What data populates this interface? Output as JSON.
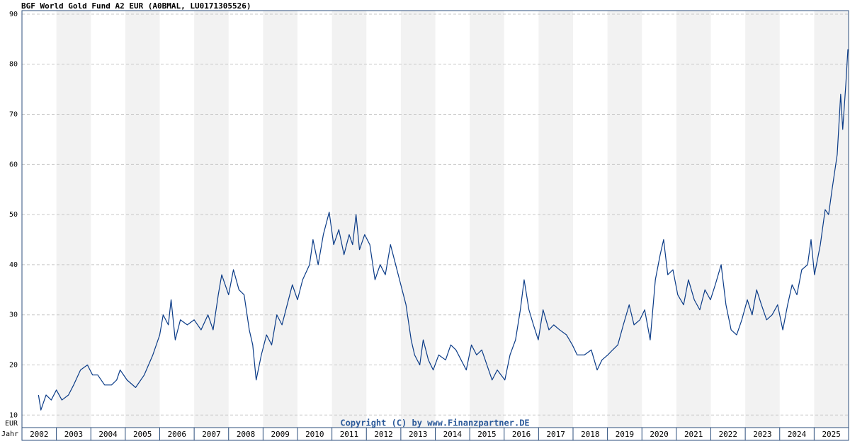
{
  "chart_data": {
    "type": "line",
    "title": "BGF World Gold Fund A2 EUR (A0BMAL, LU0171305526)",
    "annotation": "Copyright (C) by www.Finanzpartner.DE",
    "y_label": "EUR",
    "x_label": "Jahr",
    "xlim": [
      2002,
      2026
    ],
    "x_bands": [
      2002,
      2003,
      2004,
      2005,
      2006,
      2007,
      2008,
      2009,
      2010,
      2011,
      2012,
      2013,
      2014,
      2015,
      2016,
      2017,
      2018,
      2019,
      2020,
      2021,
      2022,
      2023,
      2024,
      2025
    ],
    "ylim": [
      7.5,
      90.7
    ],
    "yticks": [
      10,
      20,
      30,
      40,
      50,
      60,
      70,
      80,
      90
    ],
    "grid": true,
    "shade_alternate_years": true,
    "series": [
      {
        "color": "#0a3b87",
        "x": [
          2002.48,
          2002.55,
          2002.7,
          2002.85,
          2003.0,
          2003.16,
          2003.35,
          2003.5,
          2003.7,
          2003.9,
          2004.05,
          2004.2,
          2004.4,
          2004.6,
          2004.75,
          2004.85,
          2005.05,
          2005.3,
          2005.55,
          2005.8,
          2006.0,
          2006.1,
          2006.25,
          2006.33,
          2006.45,
          2006.6,
          2006.8,
          2007.0,
          2007.2,
          2007.4,
          2007.55,
          2007.7,
          2007.8,
          2008.0,
          2008.14,
          2008.3,
          2008.45,
          2008.6,
          2008.7,
          2008.8,
          2008.95,
          2009.1,
          2009.25,
          2009.4,
          2009.55,
          2009.7,
          2009.85,
          2010.0,
          2010.15,
          2010.35,
          2010.45,
          2010.6,
          2010.75,
          2010.92,
          2011.05,
          2011.2,
          2011.35,
          2011.5,
          2011.6,
          2011.7,
          2011.8,
          2011.95,
          2012.1,
          2012.25,
          2012.4,
          2012.55,
          2012.7,
          2012.85,
          2013.0,
          2013.15,
          2013.3,
          2013.4,
          2013.55,
          2013.65,
          2013.8,
          2013.94,
          2014.1,
          2014.3,
          2014.45,
          2014.6,
          2014.75,
          2014.9,
          2015.05,
          2015.2,
          2015.35,
          2015.5,
          2015.65,
          2015.8,
          2016.02,
          2016.17,
          2016.33,
          2016.47,
          2016.58,
          2016.72,
          2016.85,
          2016.99,
          2017.13,
          2017.3,
          2017.44,
          2017.61,
          2017.81,
          2017.98,
          2018.12,
          2018.33,
          2018.53,
          2018.7,
          2018.84,
          2019.01,
          2019.15,
          2019.3,
          2019.46,
          2019.63,
          2019.77,
          2019.94,
          2020.08,
          2020.24,
          2020.39,
          2020.53,
          2020.63,
          2020.75,
          2020.9,
          2021.04,
          2021.21,
          2021.35,
          2021.52,
          2021.68,
          2021.83,
          2021.99,
          2022.13,
          2022.3,
          2022.44,
          2022.59,
          2022.75,
          2022.9,
          2023.06,
          2023.2,
          2023.33,
          2023.47,
          2023.62,
          2023.78,
          2023.94,
          2024.09,
          2024.23,
          2024.36,
          2024.5,
          2024.64,
          2024.81,
          2024.91,
          2025.01,
          2025.18,
          2025.32,
          2025.42,
          2025.52,
          2025.67,
          2025.77,
          2025.83,
          2025.92,
          2025.98
        ],
        "values": [
          14,
          11,
          14,
          13,
          15,
          13,
          14,
          16,
          19,
          20,
          18,
          18,
          16,
          16,
          17,
          19,
          17,
          15.5,
          18,
          22,
          26,
          30,
          28,
          33,
          25,
          29,
          28,
          29,
          27,
          30,
          27,
          34,
          38,
          34,
          39,
          35,
          34,
          27,
          24,
          17,
          22,
          26,
          24,
          30,
          28,
          32,
          36,
          33,
          37,
          40,
          45,
          40,
          46,
          50.5,
          44,
          47,
          42,
          46,
          44,
          50,
          43,
          46,
          44,
          37,
          40,
          38,
          44,
          40,
          36,
          32,
          25,
          22,
          20,
          25,
          21,
          19,
          22,
          21,
          24,
          23,
          21,
          19,
          24,
          22,
          23,
          20,
          17,
          19,
          17,
          22,
          25,
          31,
          37,
          31,
          28,
          25,
          31,
          27,
          28,
          27,
          26,
          24,
          22,
          22,
          23,
          19,
          21,
          22,
          23,
          24,
          28,
          32,
          28,
          29,
          31,
          25,
          37,
          42,
          45,
          38,
          39,
          34,
          32,
          37,
          33,
          31,
          35,
          33,
          36,
          40,
          32,
          27,
          26,
          29,
          33,
          30,
          35,
          32,
          29,
          30,
          32,
          27,
          32,
          36,
          34,
          39,
          40,
          45,
          38,
          44,
          51,
          50,
          55,
          62,
          74,
          67,
          76,
          83
        ]
      }
    ]
  }
}
